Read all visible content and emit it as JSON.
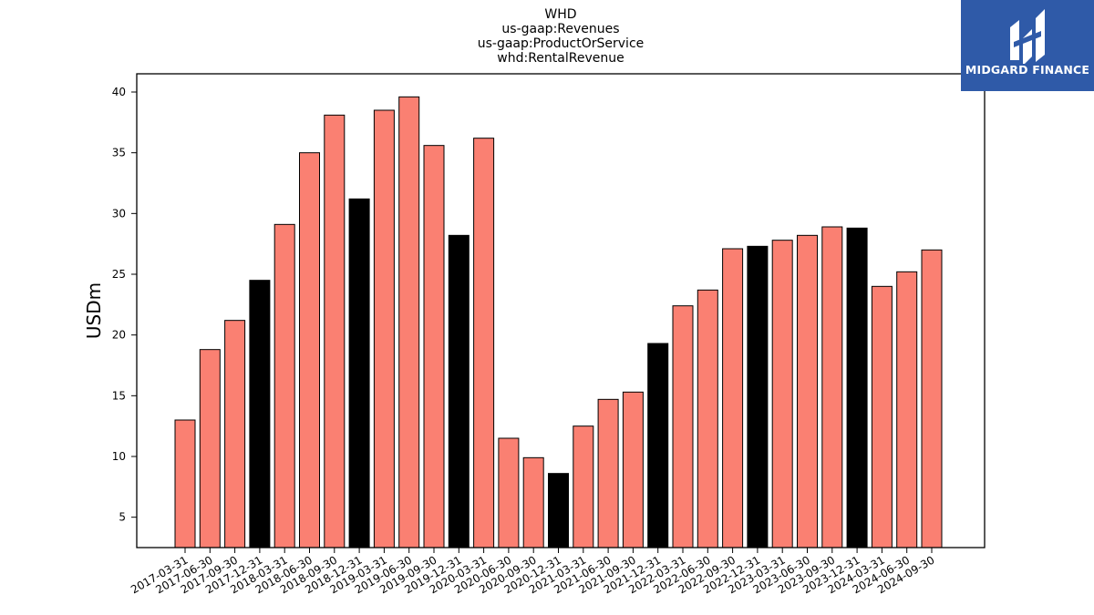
{
  "title_lines": [
    "WHD",
    "us-gaap:Revenues",
    "us-gaap:ProductOrService",
    "whd:RentalRevenue"
  ],
  "logo": {
    "text": "MIDGARD FINANCE",
    "icon": "midgard-logo-icon",
    "bg_color": "#2f5aa8"
  },
  "chart_data": {
    "type": "bar",
    "title": "WHD us-gaap:Revenues us-gaap:ProductOrService whd:RentalRevenue",
    "xlabel": "",
    "ylabel": "USDm",
    "ylim": [
      2.5,
      41.5
    ],
    "yticks": [
      5,
      10,
      15,
      20,
      25,
      30,
      35,
      40
    ],
    "grid": false,
    "colors": {
      "default": "#fa8072",
      "highlight": "#000000",
      "edge": "#000000"
    },
    "categories": [
      "2017-03-31",
      "2017-06-30",
      "2017-09-30",
      "2017-12-31",
      "2018-03-31",
      "2018-06-30",
      "2018-09-30",
      "2018-12-31",
      "2019-03-31",
      "2019-06-30",
      "2019-09-30",
      "2019-12-31",
      "2020-03-31",
      "2020-06-30",
      "2020-09-30",
      "2020-12-31",
      "2021-03-31",
      "2021-06-30",
      "2021-09-30",
      "2021-12-31",
      "2022-03-31",
      "2022-06-30",
      "2022-09-30",
      "2022-12-31",
      "2023-03-31",
      "2023-06-30",
      "2023-09-30",
      "2023-12-31",
      "2024-03-31",
      "2024-06-30",
      "2024-09-30"
    ],
    "values": [
      13.0,
      18.8,
      21.2,
      24.5,
      29.1,
      35.0,
      38.1,
      31.2,
      38.5,
      39.6,
      35.6,
      28.2,
      36.2,
      11.5,
      9.9,
      8.6,
      12.5,
      14.7,
      15.3,
      19.3,
      22.4,
      23.7,
      27.1,
      27.3,
      27.8,
      28.2,
      28.9,
      28.8,
      24.0,
      25.2,
      27.0
    ],
    "highlighted": [
      false,
      false,
      false,
      true,
      false,
      false,
      false,
      true,
      false,
      false,
      false,
      true,
      false,
      false,
      false,
      true,
      false,
      false,
      false,
      true,
      false,
      false,
      false,
      true,
      false,
      false,
      false,
      true,
      false,
      false,
      false
    ]
  }
}
